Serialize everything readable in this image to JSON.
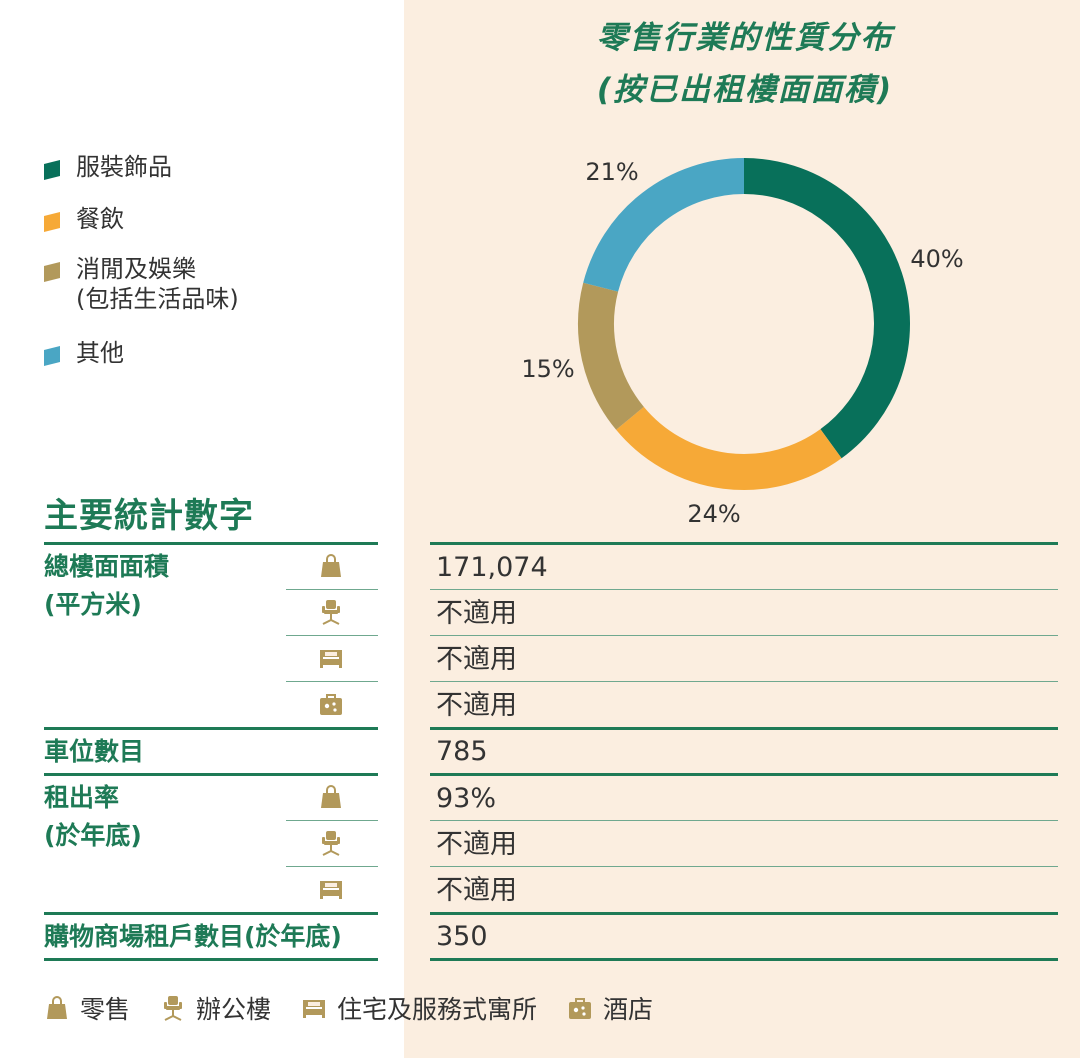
{
  "chart_title_line1": "零售行業的性質分布",
  "chart_title_line2": "(按已出租樓面面積)",
  "chart_data": {
    "type": "pie",
    "title": "零售行業的性質分布 (按已出租樓面面積)",
    "categories": [
      "服裝飾品",
      "餐飲",
      "消閒及娛樂 (包括生活品味)",
      "其他"
    ],
    "values": [
      40,
      24,
      15,
      21
    ],
    "labels": [
      "40%",
      "24%",
      "15%",
      "21%"
    ],
    "colors": [
      "#08705a",
      "#f6a937",
      "#b2995b",
      "#4aa6c4"
    ],
    "style": "donut",
    "legend_placement": "left"
  },
  "legend": [
    {
      "line1": "服裝飾品",
      "line2": "",
      "color": "#08705a"
    },
    {
      "line1": "餐飲",
      "line2": "",
      "color": "#f6a937"
    },
    {
      "line1": "消閒及娛樂",
      "line2": "(包括生活品味)",
      "color": "#b2995b"
    },
    {
      "line1": "其他",
      "line2": "",
      "color": "#4aa6c4"
    }
  ],
  "stats": {
    "section_title": "主要統計數字",
    "gfa_label_line1": "總樓面面積",
    "gfa_label_line2": "(平方米)",
    "gfa_values": [
      {
        "type": "retail",
        "value": "171,074"
      },
      {
        "type": "office",
        "value": "不適用"
      },
      {
        "type": "residential",
        "value": "不適用"
      },
      {
        "type": "hotel",
        "value": "不適用"
      }
    ],
    "parking_label": "車位數目",
    "parking_value": "785",
    "occupancy_label_line1": "租出率",
    "occupancy_label_line2": "(於年底)",
    "occupancy_values": [
      {
        "type": "retail",
        "value": "93%"
      },
      {
        "type": "office",
        "value": "不適用"
      },
      {
        "type": "residential",
        "value": "不適用"
      }
    ],
    "tenants_label": "購物商場租戶數目(於年底)",
    "tenants_value": "350"
  },
  "footer_legend": [
    {
      "icon": "shopping-bag-icon",
      "label": "零售"
    },
    {
      "icon": "office-chair-icon",
      "label": "辦公樓"
    },
    {
      "icon": "bed-icon",
      "label": "住宅及服務式寓所"
    },
    {
      "icon": "suitcase-icon",
      "label": "酒店"
    }
  ],
  "icon_color": "#b2995b",
  "accent_color": "#1e7a56"
}
